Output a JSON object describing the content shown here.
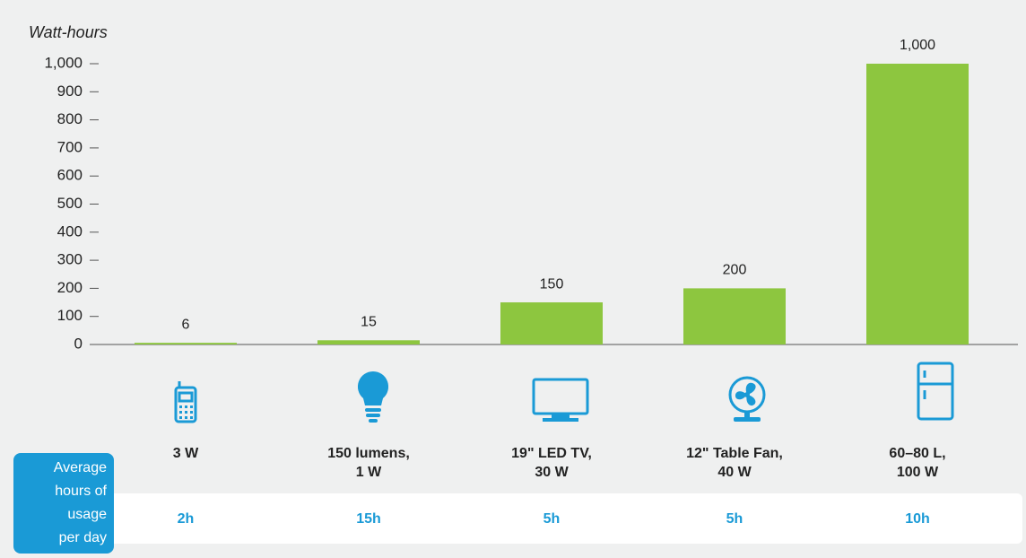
{
  "chart_data": {
    "type": "bar",
    "y_axis_label": "Watt-hours",
    "categories": [
      [
        "3 W"
      ],
      [
        "150 lumens,",
        "1 W"
      ],
      [
        "19\" LED TV,",
        "30 W"
      ],
      [
        "12\" Table Fan,",
        "40 W"
      ],
      [
        "60–80 L,",
        "100 W"
      ]
    ],
    "values": [
      6,
      15,
      150,
      200,
      1000
    ],
    "value_labels": [
      "6",
      "15",
      "150",
      "200",
      "1,000"
    ],
    "color": "#8dc63f",
    "ylim": [
      0,
      1000
    ],
    "yticks": [
      0,
      100,
      200,
      300,
      400,
      500,
      600,
      700,
      800,
      900,
      {
        "value": 1000,
        "label": "1,000"
      }
    ],
    "usage_header": [
      "Average",
      "hours of",
      "usage",
      "per day"
    ],
    "usage_hours": [
      "2h",
      "15h",
      "5h",
      "5h",
      "10h"
    ]
  }
}
